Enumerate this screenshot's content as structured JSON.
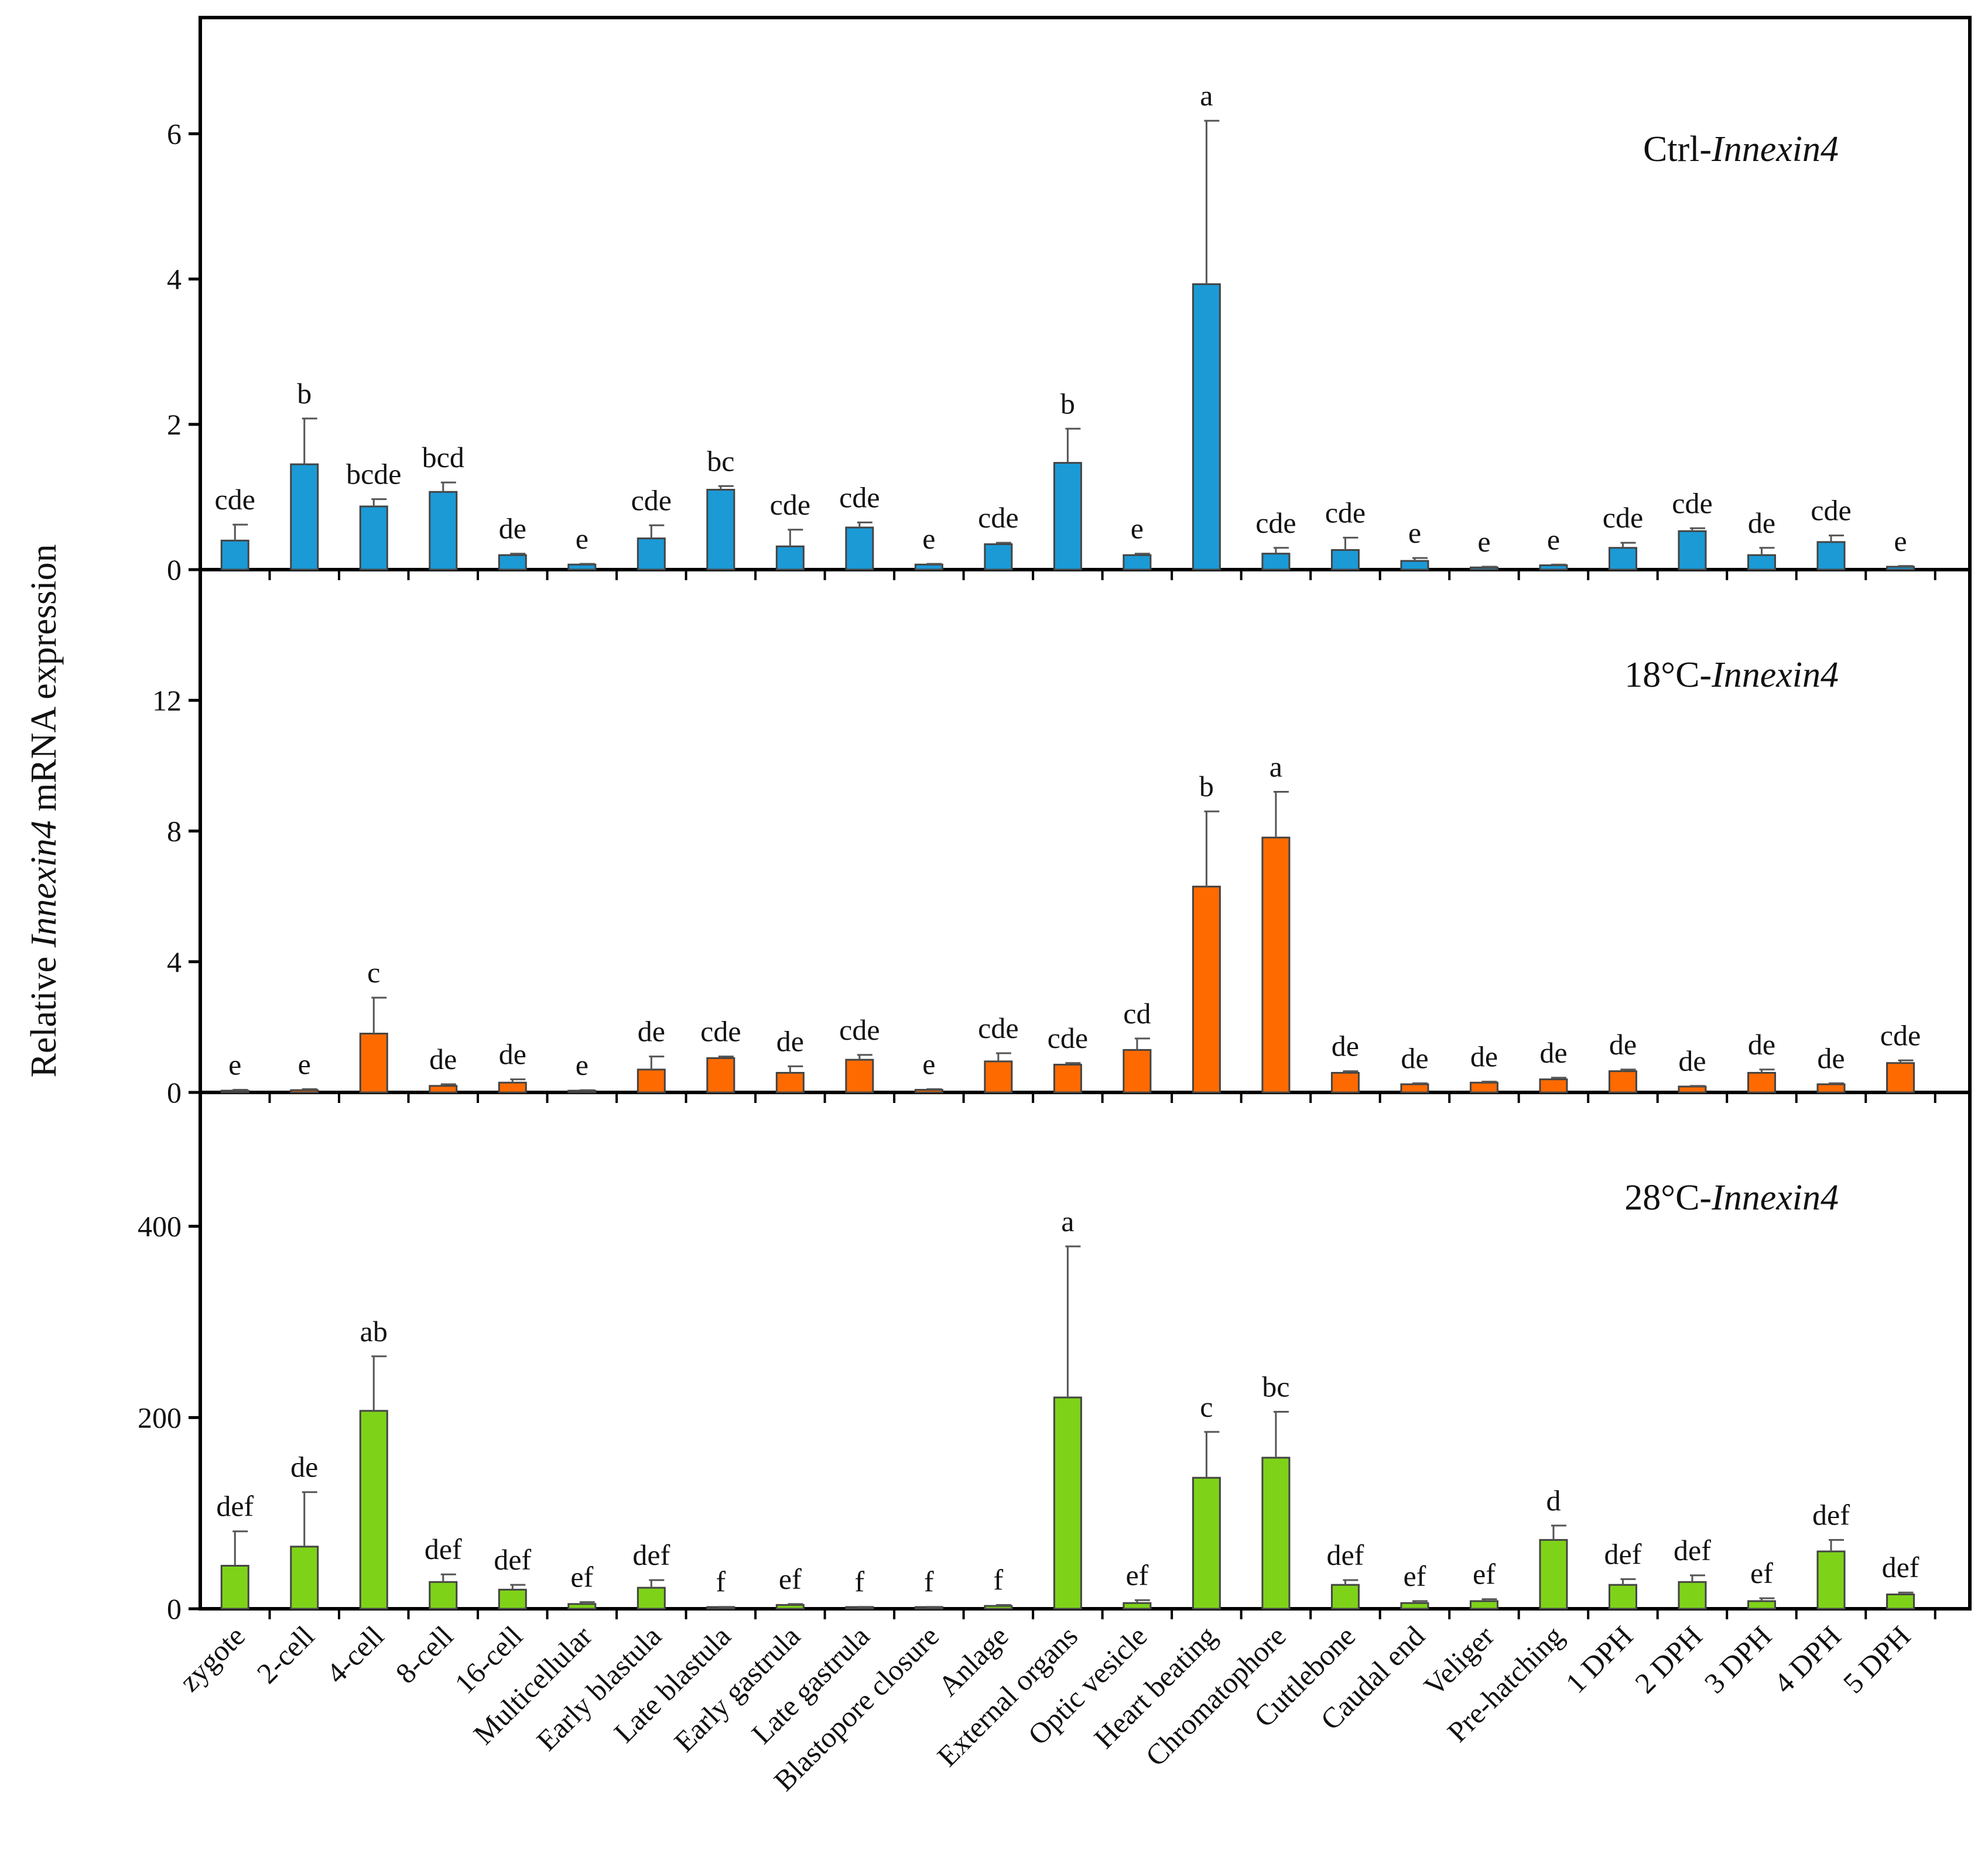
{
  "chart_data": {
    "type": "bar",
    "ylabel_parts": [
      "Relative ",
      "Innexin4",
      " mRNA expression"
    ],
    "categories": [
      "zygote",
      "2-cell",
      "4-cell",
      "8-cell",
      "16-cell",
      "Multicellular",
      "Early blastula",
      "Late blastula",
      "Early gastrula",
      "Late gastrula",
      "Blastopore closure",
      "Anlage",
      "External organs",
      "Optic vesicle",
      "Heart beating",
      "Chromatophore",
      "Cuttlebone",
      "Caudal end",
      "Veliger",
      "Pre-hatching",
      "1 DPH",
      "2 DPH",
      "3 DPH",
      "4 DPH",
      "5 DPH"
    ],
    "panels": [
      {
        "title_prefix": "Ctrl-",
        "title_gene": "Innexin4",
        "color": "#1b9ad6",
        "ylim": [
          0,
          7.6
        ],
        "yticks": [
          0,
          2,
          4,
          6
        ],
        "values": [
          0.4,
          1.45,
          0.87,
          1.07,
          0.2,
          0.07,
          0.43,
          1.1,
          0.32,
          0.58,
          0.07,
          0.35,
          1.47,
          0.2,
          3.93,
          0.22,
          0.27,
          0.12,
          0.03,
          0.06,
          0.3,
          0.53,
          0.2,
          0.38,
          0.04
        ],
        "errors": [
          0.22,
          0.63,
          0.1,
          0.13,
          0.02,
          0.01,
          0.18,
          0.05,
          0.23,
          0.07,
          0.01,
          0.02,
          0.47,
          0.02,
          2.25,
          0.08,
          0.17,
          0.04,
          0.01,
          0.01,
          0.07,
          0.04,
          0.1,
          0.09,
          0.01
        ],
        "letters": [
          "cde",
          "b",
          "bcde",
          "bcd",
          "de",
          "e",
          "cde",
          "bc",
          "cde",
          "cde",
          "e",
          "cde",
          "b",
          "e",
          "a",
          "cde",
          "cde",
          "e",
          "e",
          "e",
          "cde",
          "cde",
          "de",
          "cde",
          "e"
        ]
      },
      {
        "title_prefix": "18°C-",
        "title_gene": "Innexin4",
        "color": "#ff6a00",
        "ylim": [
          0,
          16
        ],
        "yticks": [
          0,
          4,
          8,
          12
        ],
        "values": [
          0.05,
          0.07,
          1.8,
          0.2,
          0.3,
          0.05,
          0.7,
          1.05,
          0.6,
          1.0,
          0.08,
          0.95,
          0.85,
          1.3,
          6.3,
          7.8,
          0.6,
          0.25,
          0.3,
          0.4,
          0.65,
          0.18,
          0.6,
          0.25,
          0.9
        ],
        "errors": [
          0.03,
          0.03,
          1.1,
          0.05,
          0.1,
          0.02,
          0.4,
          0.05,
          0.2,
          0.15,
          0.02,
          0.25,
          0.05,
          0.35,
          2.3,
          1.4,
          0.05,
          0.03,
          0.03,
          0.05,
          0.05,
          0.02,
          0.1,
          0.03,
          0.08
        ],
        "letters": [
          "e",
          "e",
          "c",
          "de",
          "de",
          "e",
          "de",
          "cde",
          "de",
          "cde",
          "e",
          "cde",
          "cde",
          "cd",
          "b",
          "a",
          "de",
          "de",
          "de",
          "de",
          "de",
          "de",
          "de",
          "de",
          "cde"
        ]
      },
      {
        "title_prefix": "28°C-",
        "title_gene": "Innexin4",
        "color": "#7ed319",
        "ylim": [
          0,
          540
        ],
        "yticks": [
          0,
          200,
          400
        ],
        "values": [
          45,
          65,
          207,
          28,
          20,
          5,
          22,
          1.5,
          4,
          1.5,
          1.5,
          3,
          221,
          6,
          137,
          158,
          25,
          6,
          8,
          72,
          25,
          28,
          8,
          60,
          15
        ],
        "errors": [
          36,
          57,
          57,
          8,
          5,
          2,
          8,
          0.5,
          1,
          0.5,
          0.5,
          1,
          158,
          3,
          48,
          48,
          5,
          2,
          2,
          15,
          6,
          7,
          3,
          12,
          2
        ],
        "letters": [
          "def",
          "de",
          "ab",
          "def",
          "def",
          "ef",
          "def",
          "f",
          "ef",
          "f",
          "f",
          "f",
          "a",
          "ef",
          "c",
          "bc",
          "def",
          "ef",
          "ef",
          "d",
          "def",
          "def",
          "ef",
          "def",
          "def"
        ]
      }
    ]
  }
}
